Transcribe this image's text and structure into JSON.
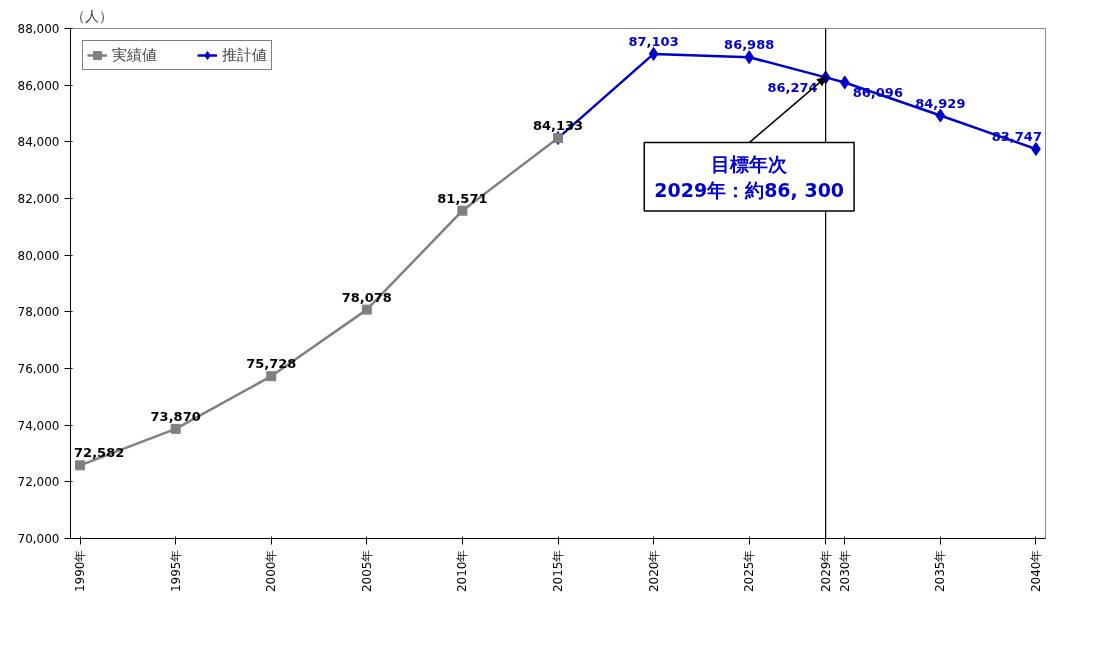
{
  "chart_data": {
    "type": "line",
    "ylabel": "（人）",
    "series": [
      {
        "name": "実績値",
        "color": "#808080",
        "marker": "square",
        "x": [
          1990,
          1995,
          2000,
          2005,
          2010,
          2015
        ],
        "values": [
          72582,
          73870,
          75728,
          78078,
          81571,
          84133
        ],
        "value_labels": [
          "72,582",
          "73,870",
          "75,728",
          "78,078",
          "81,571",
          "84,133"
        ]
      },
      {
        "name": "推計値",
        "color": "#0000cc",
        "marker": "diamond",
        "x": [
          2015,
          2020,
          2025,
          2029,
          2030,
          2035,
          2040
        ],
        "values": [
          84133,
          87103,
          86988,
          86274,
          86096,
          84929,
          83747
        ],
        "value_labels": [
          null,
          "87,103",
          "86,988",
          "86,274",
          "86,096",
          "84,929",
          "83,747"
        ]
      }
    ],
    "xlim": [
      1989.5,
      2040.5
    ],
    "xticks": [
      {
        "value": 1990,
        "label": "1990年"
      },
      {
        "value": 1995,
        "label": "1995年"
      },
      {
        "value": 2000,
        "label": "2000年"
      },
      {
        "value": 2005,
        "label": "2005年"
      },
      {
        "value": 2010,
        "label": "2010年"
      },
      {
        "value": 2015,
        "label": "2015年"
      },
      {
        "value": 2020,
        "label": "2020年"
      },
      {
        "value": 2025,
        "label": "2025年"
      },
      {
        "value": 2029,
        "label": "2029年"
      },
      {
        "value": 2030,
        "label": "2030年"
      },
      {
        "value": 2035,
        "label": "2035年"
      },
      {
        "value": 2040,
        "label": "2040年"
      }
    ],
    "ylim": [
      70000,
      88000
    ],
    "yticks": [
      {
        "value": 70000,
        "label": "70,000"
      },
      {
        "value": 72000,
        "label": "72,000"
      },
      {
        "value": 74000,
        "label": "74,000"
      },
      {
        "value": 76000,
        "label": "76,000"
      },
      {
        "value": 78000,
        "label": "78,000"
      },
      {
        "value": 80000,
        "label": "80,000"
      },
      {
        "value": 82000,
        "label": "82,000"
      },
      {
        "value": 84000,
        "label": "84,000"
      },
      {
        "value": 86000,
        "label": "86,000"
      },
      {
        "value": 88000,
        "label": "88,000"
      }
    ],
    "ref_lines": [
      {
        "axis": "x",
        "value": 2029,
        "color": "#000000"
      }
    ],
    "annotations": [
      {
        "text": "目標年次\n2029年：約86, 300",
        "x": 2029,
        "y": 86274
      }
    ],
    "legend": "top",
    "grid": false,
    "line_style": "solid"
  }
}
